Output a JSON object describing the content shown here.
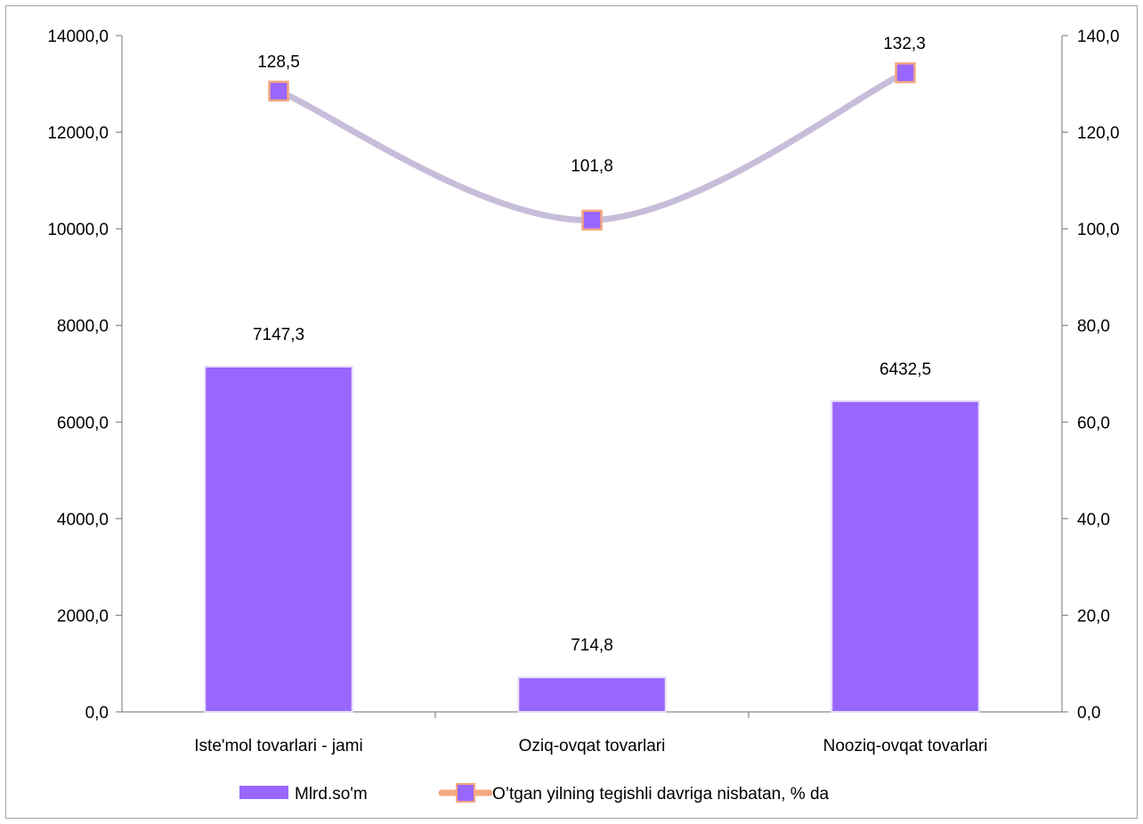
{
  "chart_data": {
    "type": "bar",
    "categories": [
      "Iste'mol tovarlari - jami",
      "Oziq-ovqat tovarlari",
      "Nooziq-ovqat tovarlari"
    ],
    "series": [
      {
        "name": "Mlrd.so'm",
        "type": "bar",
        "axis": "left",
        "values": [
          7147.3,
          714.8,
          6432.5
        ],
        "labels": [
          "7147,3",
          "714,8",
          "6432,5"
        ],
        "color": "#9966ff"
      },
      {
        "name": "O’tgan yilning tegishli davriga nisbatan, % da",
        "type": "line",
        "axis": "right",
        "smooth": true,
        "values": [
          128.5,
          101.8,
          132.3
        ],
        "labels": [
          "128,5",
          "101,8",
          "132,3"
        ],
        "line_color": "#c7bdd9",
        "marker_color": "#9966ff",
        "marker_border": "#f4a77f"
      }
    ],
    "y_left": {
      "ylim": [
        0,
        14000
      ],
      "ticks": [
        0,
        2000,
        4000,
        6000,
        8000,
        10000,
        12000,
        14000
      ],
      "tick_labels": [
        "0,0",
        "2000,0",
        "4000,0",
        "6000,0",
        "8000,0",
        "10000,0",
        "12000,0",
        "14000,0"
      ]
    },
    "y_right": {
      "ylim": [
        0,
        140
      ],
      "ticks": [
        0,
        20,
        40,
        60,
        80,
        100,
        120,
        140
      ],
      "tick_labels": [
        "0,0",
        "20,0",
        "40,0",
        "60,0",
        "80,0",
        "100,0",
        "120,0",
        "140,0"
      ]
    },
    "grid": false,
    "legend_position": "bottom",
    "axis_color": "#888888"
  }
}
